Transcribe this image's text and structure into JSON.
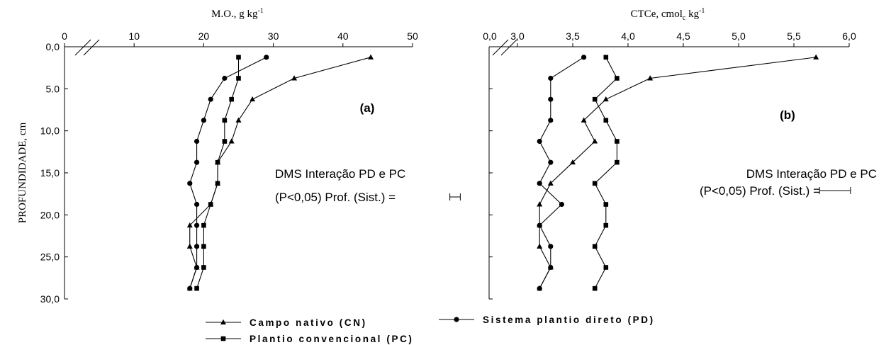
{
  "chart_data": [
    {
      "type": "line",
      "panel_label": "(a)",
      "xlabel": "M.O., g kg",
      "xlabel_sup": "-1",
      "ylabel": "PROFUNDIDADE, cm",
      "x_ticks": [
        "0",
        "10",
        "20",
        "30",
        "40",
        "50"
      ],
      "y_ticks": [
        "0,0",
        "5.0",
        "10,0",
        "15,0",
        "20,0",
        "25,0",
        "30,0"
      ],
      "xlim": [
        0,
        50
      ],
      "ylim": [
        0,
        30
      ],
      "axis_break": true,
      "depths": [
        1.25,
        3.75,
        6.25,
        8.75,
        11.25,
        13.75,
        16.25,
        18.75,
        21.25,
        23.75,
        26.25,
        28.75
      ],
      "series": [
        {
          "name": "Campo nativo (CN)",
          "marker": "triangle",
          "values": [
            44,
            33,
            27,
            25,
            24,
            22,
            22,
            21,
            18,
            18,
            19,
            18
          ]
        },
        {
          "name": "Sistema plantio direto (PD)",
          "marker": "circle",
          "values": [
            29,
            23,
            21,
            20,
            19,
            19,
            18,
            19,
            19,
            19,
            19,
            18
          ]
        },
        {
          "name": "Plantio convencional (PC)",
          "marker": "square",
          "values": [
            25,
            25,
            24,
            23,
            23,
            22,
            22,
            21,
            20,
            20,
            20,
            19
          ]
        }
      ],
      "annotation_line1": "DMS Interação PD e PC",
      "annotation_line2": "(P<0,05) Prof. (Sist.) =",
      "dms_value": 1.5
    },
    {
      "type": "line",
      "panel_label": "(b)",
      "xlabel": "CTCe, cmol",
      "xlabel_sub": "c",
      "xlabel_after": " kg",
      "xlabel_sup": "-1",
      "x_ticks": [
        "0,0",
        "3,0",
        "3,5",
        "4,0",
        "4,5",
        "5,0",
        "5,5",
        "6,0"
      ],
      "xlim": [
        3,
        6
      ],
      "ylim": [
        0,
        30
      ],
      "axis_break": true,
      "depths": [
        1.25,
        3.75,
        6.25,
        8.75,
        11.25,
        13.75,
        16.25,
        18.75,
        21.25,
        23.75,
        26.25,
        28.75
      ],
      "series": [
        {
          "name": "Campo nativo (CN)",
          "marker": "triangle",
          "values": [
            5.7,
            4.2,
            3.8,
            3.6,
            3.7,
            3.5,
            3.3,
            3.2,
            3.2,
            3.2,
            3.3,
            3.2
          ]
        },
        {
          "name": "Sistema plantio direto (PD)",
          "marker": "circle",
          "values": [
            3.6,
            3.3,
            3.3,
            3.3,
            3.2,
            3.3,
            3.2,
            3.4,
            3.2,
            3.3,
            3.3,
            3.2
          ]
        },
        {
          "name": "Plantio convencional (PC)",
          "marker": "square",
          "values": [
            3.8,
            3.9,
            3.7,
            3.8,
            3.9,
            3.9,
            3.7,
            3.8,
            3.8,
            3.7,
            3.8,
            3.7
          ]
        }
      ],
      "annotation_line1": "DMS Interação  PD e PC",
      "annotation_line2": "(P<0,05) Prof. (Sist.) =",
      "dms_value": 0.28
    }
  ],
  "legend": [
    {
      "label": "Campo nativo (CN)",
      "marker": "triangle"
    },
    {
      "label": "Sistema plantio direto (PD)",
      "marker": "circle"
    },
    {
      "label": "Plantio convencional (PC)",
      "marker": "square"
    }
  ]
}
